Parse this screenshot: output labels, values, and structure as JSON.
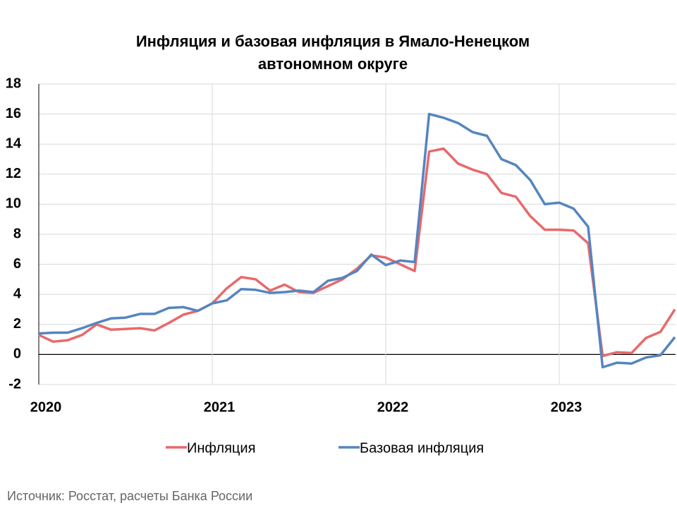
{
  "chart_data": {
    "type": "line",
    "title": [
      "Инфляция и базовая инфляция в Ямало-Ненецком",
      "автономном округе"
    ],
    "categories": [
      "2020",
      null,
      null,
      null,
      null,
      null,
      null,
      null,
      null,
      null,
      null,
      null,
      "2021",
      null,
      null,
      null,
      null,
      null,
      null,
      null,
      null,
      null,
      null,
      null,
      "2022",
      null,
      null,
      null,
      null,
      null,
      null,
      null,
      null,
      null,
      null,
      null,
      "2023",
      null,
      null,
      null,
      null,
      null,
      null,
      null,
      null
    ],
    "series": [
      {
        "name": "Инфляция",
        "color": "#e8696b",
        "values": [
          1.3,
          0.85,
          0.95,
          1.3,
          2.0,
          1.65,
          1.7,
          1.75,
          1.6,
          2.1,
          2.65,
          2.9,
          3.4,
          4.4,
          5.15,
          5.0,
          4.25,
          4.65,
          4.15,
          4.1,
          4.55,
          5.0,
          5.7,
          6.6,
          6.45,
          6.0,
          5.55,
          13.5,
          13.7,
          12.7,
          12.3,
          12.0,
          10.75,
          10.5,
          9.2,
          8.3,
          8.3,
          8.25,
          7.4,
          -0.1,
          0.15,
          0.1,
          1.1,
          1.5,
          3.0
        ]
      },
      {
        "name": "Базовая инфляция",
        "color": "#5585bf",
        "values": [
          1.4,
          1.45,
          1.45,
          1.75,
          2.1,
          2.4,
          2.45,
          2.7,
          2.7,
          3.1,
          3.15,
          2.9,
          3.4,
          3.6,
          4.35,
          4.3,
          4.1,
          4.15,
          4.25,
          4.15,
          4.9,
          5.1,
          5.55,
          6.65,
          5.95,
          6.25,
          6.15,
          16.0,
          15.75,
          15.4,
          14.8,
          14.55,
          13.0,
          12.6,
          11.6,
          10.0,
          10.1,
          9.7,
          8.5,
          -0.85,
          -0.55,
          -0.6,
          -0.2,
          -0.05,
          1.15
        ]
      }
    ],
    "ylim": [
      -2,
      18
    ],
    "yticks": [
      -2,
      0,
      2,
      4,
      6,
      8,
      10,
      12,
      14,
      16,
      18
    ],
    "grid": true,
    "legend": "bottom",
    "source": "Источник: Росстат, расчеты Банка России"
  }
}
